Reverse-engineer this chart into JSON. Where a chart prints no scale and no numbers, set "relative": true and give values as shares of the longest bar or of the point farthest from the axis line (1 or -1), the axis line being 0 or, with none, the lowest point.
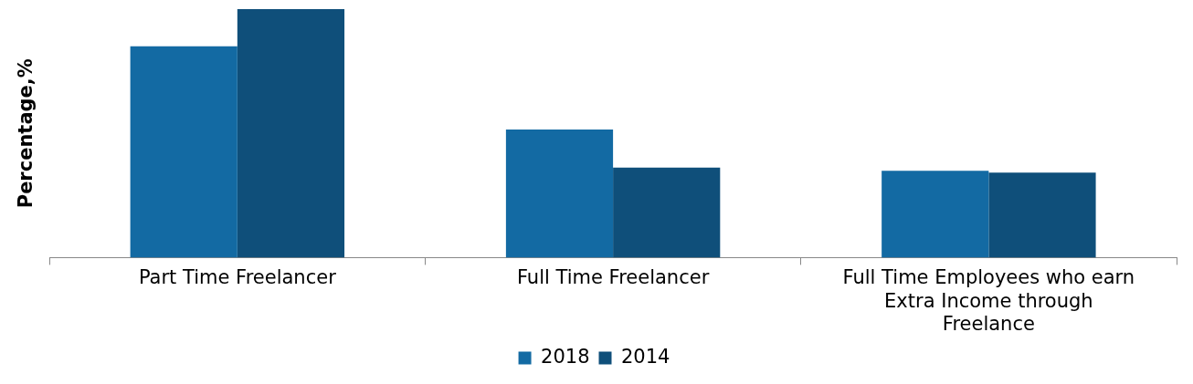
{
  "chart_data": {
    "type": "bar",
    "ylabel": "Percentage,%",
    "relative": true,
    "legend": "bottom",
    "grid": false,
    "categories": [
      "Part Time Freelancer",
      "Full Time Freelancer",
      "Full Time Employees who earn Extra Income through Freelance"
    ],
    "series": [
      {
        "name": "2018",
        "color": "#136aa3",
        "values": [
          0.85,
          0.515,
          0.349
        ]
      },
      {
        "name": "2014",
        "color": "#0f4f7a",
        "values": [
          1,
          0.362,
          0.342
        ]
      }
    ]
  }
}
